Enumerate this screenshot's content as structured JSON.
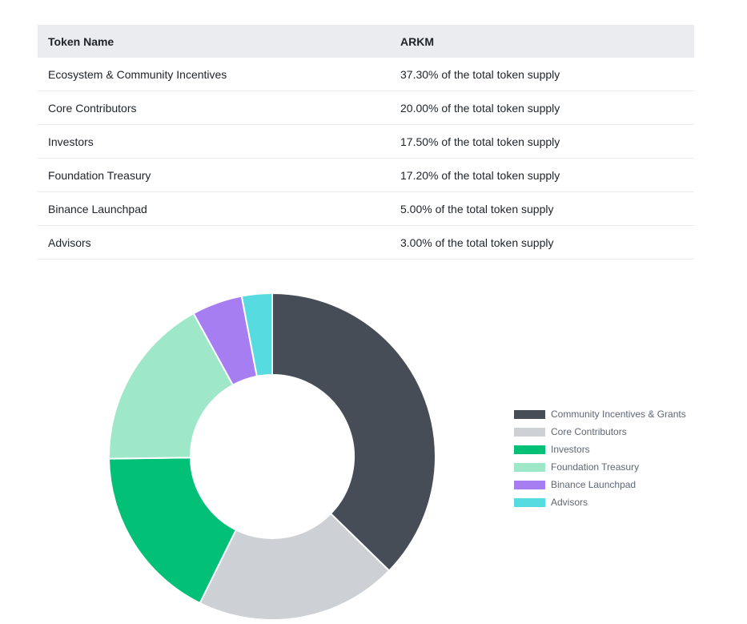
{
  "table": {
    "headers": [
      "Token Name",
      "ARKM"
    ],
    "rows": [
      [
        "Ecosystem & Community Incentives",
        "37.30% of the total token supply"
      ],
      [
        "Core Contributors",
        "20.00% of the total token supply"
      ],
      [
        "Investors",
        "17.50% of the total token supply"
      ],
      [
        "Foundation Treasury",
        "17.20% of the total token supply"
      ],
      [
        "Binance Launchpad",
        "5.00% of the total token supply"
      ],
      [
        "Advisors",
        "3.00% of the total token supply"
      ]
    ]
  },
  "chart_data": {
    "type": "pie",
    "donut": true,
    "legend_position": "right",
    "categories": [
      "Community Incentives & Grants",
      "Core Contributors",
      "Investors",
      "Foundation Treasury",
      "Binance Launchpad",
      "Advisors"
    ],
    "values": [
      37.3,
      20.0,
      17.5,
      17.2,
      5.0,
      3.0
    ],
    "colors": [
      "#474d57",
      "#cdd0d4",
      "#02c076",
      "#9ee8c9",
      "#a67ef1",
      "#55dbe0"
    ]
  }
}
